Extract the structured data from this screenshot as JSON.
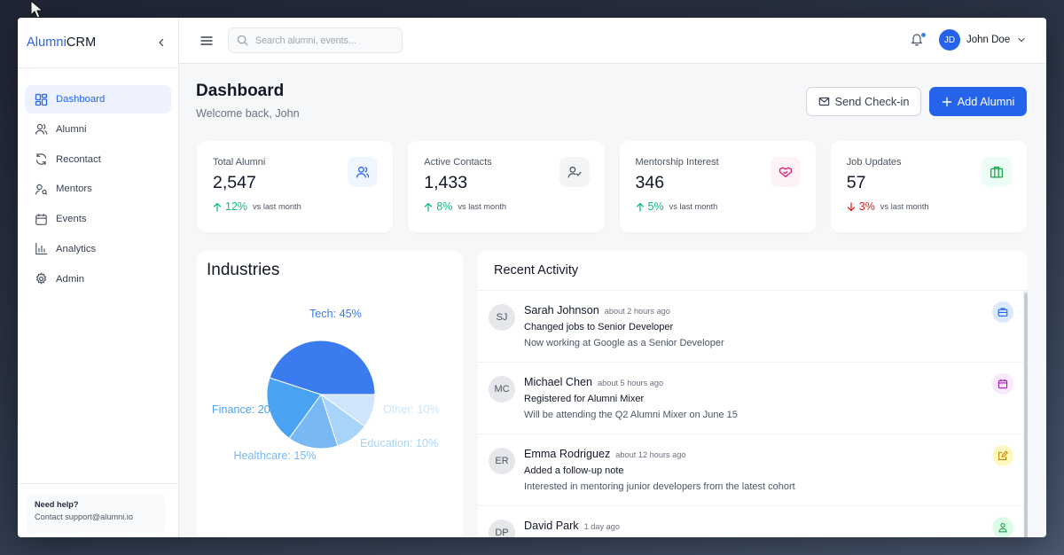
{
  "app": {
    "brand_prefix": "Alumni",
    "brand_suffix": "CRM"
  },
  "sidebar": {
    "items": [
      {
        "label": "Dashboard",
        "icon": "dashboard-icon",
        "active": true
      },
      {
        "label": "Alumni",
        "icon": "users-icon"
      },
      {
        "label": "Recontact",
        "icon": "refresh-icon"
      },
      {
        "label": "Mentors",
        "icon": "mentor-icon"
      },
      {
        "label": "Events",
        "icon": "calendar-icon"
      },
      {
        "label": "Analytics",
        "icon": "chart-icon"
      },
      {
        "label": "Admin",
        "icon": "gear-icon"
      }
    ],
    "help_title": "Need help?",
    "help_text": "Contact support@alumni.io"
  },
  "topbar": {
    "search_placeholder": "Search alumni, events...",
    "user_initials": "JD",
    "user_name": "John Doe"
  },
  "page": {
    "title": "Dashboard",
    "subtitle": "Welcome back, John",
    "send_checkin_label": "Send Check-in",
    "add_alumni_label": "Add Alumni"
  },
  "stats": [
    {
      "label": "Total Alumni",
      "value": "2,547",
      "trend": "12%",
      "direction": "up",
      "vs": "vs last month",
      "icon": "users-icon",
      "icon_color": "#2563eb",
      "icon_bg": "#eff6ff"
    },
    {
      "label": "Active Contacts",
      "value": "1,433",
      "trend": "8%",
      "direction": "up",
      "vs": "vs last month",
      "icon": "user-check-icon",
      "icon_color": "#4b5563",
      "icon_bg": "#f3f4f6"
    },
    {
      "label": "Mentorship Interest",
      "value": "346",
      "trend": "5%",
      "direction": "up",
      "vs": "vs last month",
      "icon": "handshake-icon",
      "icon_color": "#db2777",
      "icon_bg": "#fdf2f8"
    },
    {
      "label": "Job Updates",
      "value": "57",
      "trend": "3%",
      "direction": "down",
      "vs": "vs last month",
      "icon": "briefcase-icon",
      "icon_color": "#16a34a",
      "icon_bg": "#ecfdf5"
    }
  ],
  "colors": {
    "accent": "#2563eb",
    "trend_up": "#10b981",
    "trend_down": "#dc2626"
  },
  "industries": {
    "title": "Industries"
  },
  "chart_data": {
    "type": "pie",
    "title": "Industries",
    "slices": [
      {
        "label": "Tech: 45%",
        "name": "Tech",
        "value": 45,
        "color": "#3b7bf0"
      },
      {
        "label": "Other: 10%",
        "name": "Other",
        "value": 10,
        "color": "#cfe5fb"
      },
      {
        "label": "Education: 10%",
        "name": "Education",
        "value": 10,
        "color": "#a8d4f9"
      },
      {
        "label": "Healthcare: 15%",
        "name": "Healthcare",
        "value": 15,
        "color": "#78b8f5"
      },
      {
        "label": "Finance: 20%",
        "name": "Finance",
        "value": 20,
        "color": "#4aa3f2"
      }
    ]
  },
  "activity": {
    "title": "Recent Activity",
    "items": [
      {
        "initials": "SJ",
        "name": "Sarah Johnson",
        "time": "about 2 hours ago",
        "title": "Changed jobs to Senior Developer",
        "desc": "Now working at Google as a Senior Developer",
        "badge_icon": "briefcase-icon",
        "badge_color": "#2563eb",
        "badge_bg": "#dbeafe"
      },
      {
        "initials": "MC",
        "name": "Michael Chen",
        "time": "about 5 hours ago",
        "title": "Registered for Alumni Mixer",
        "desc": "Will be attending the Q2 Alumni Mixer on June 15",
        "badge_icon": "calendar-icon",
        "badge_color": "#a21caf",
        "badge_bg": "#fae8ff"
      },
      {
        "initials": "ER",
        "name": "Emma Rodriguez",
        "time": "about 12 hours ago",
        "title": "Added a follow-up note",
        "desc": "Interested in mentoring junior developers from the latest cohort",
        "badge_icon": "edit-icon",
        "badge_color": "#ca8a04",
        "badge_bg": "#fef9c3"
      },
      {
        "initials": "DP",
        "name": "David Park",
        "time": "1 day ago",
        "title": "",
        "desc": "",
        "badge_icon": "mentor-icon",
        "badge_color": "#16a34a",
        "badge_bg": "#dcfce7"
      }
    ]
  }
}
